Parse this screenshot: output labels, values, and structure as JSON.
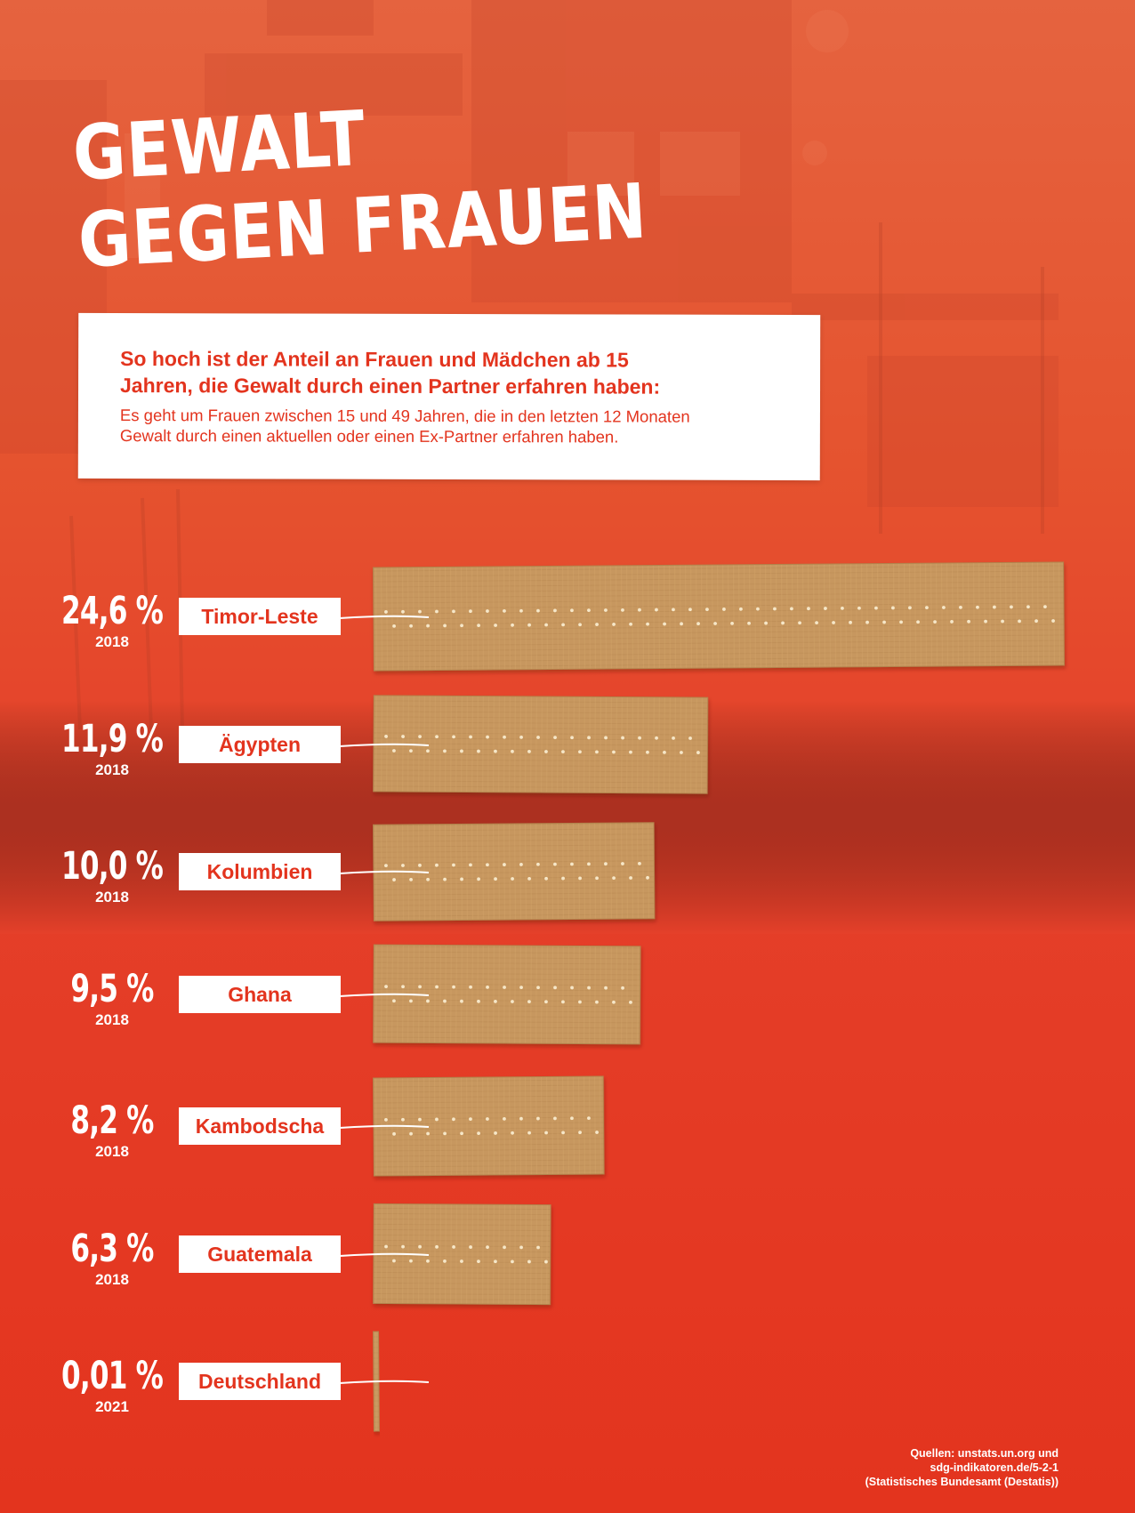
{
  "header": {
    "title_line1": "GEWALT",
    "title_line2": "GEGEN FRAUEN"
  },
  "intro": {
    "headline_line1": "So hoch ist der Anteil an Frauen und Mädchen ab 15",
    "headline_line2": "Jahren, die Gewalt durch einen Partner erfahren haben:",
    "subtext_line1": "Es geht um Frauen zwischen 15 und 49 Jahren, die in den letzten 12 Monaten",
    "subtext_line2": "Gewalt durch einen aktuellen oder einen Ex-Partner erfahren haben."
  },
  "colors": {
    "accent": "#e3341e",
    "bar_fill": "#c7975e",
    "bar_edge": "#b2824c",
    "label_bg": "#ffffff"
  },
  "chart_data": {
    "type": "bar",
    "orientation": "horizontal",
    "categories": [
      "Timor-Leste",
      "Ägypten",
      "Kolumbien",
      "Ghana",
      "Kambodscha",
      "Guatemala",
      "Deutschland"
    ],
    "values": [
      24.6,
      11.9,
      10.0,
      9.5,
      8.2,
      6.3,
      0.01
    ],
    "value_labels": [
      "24,6 %",
      "11,9 %",
      "10,0 %",
      "9,5 %",
      "8,2 %",
      "6,3 %",
      "0,01 %"
    ],
    "years": [
      "2018",
      "2018",
      "2018",
      "2018",
      "2018",
      "2018",
      "2021"
    ],
    "unit": "%",
    "xlim": [
      0,
      24.6
    ],
    "grid": false,
    "legend": "none"
  },
  "sources": {
    "line1": "Quellen: unstats.un.org und",
    "line2": "sdg-indikatoren.de/5-2-1",
    "line3": "(Statistisches Bundesamt (Destatis))"
  }
}
